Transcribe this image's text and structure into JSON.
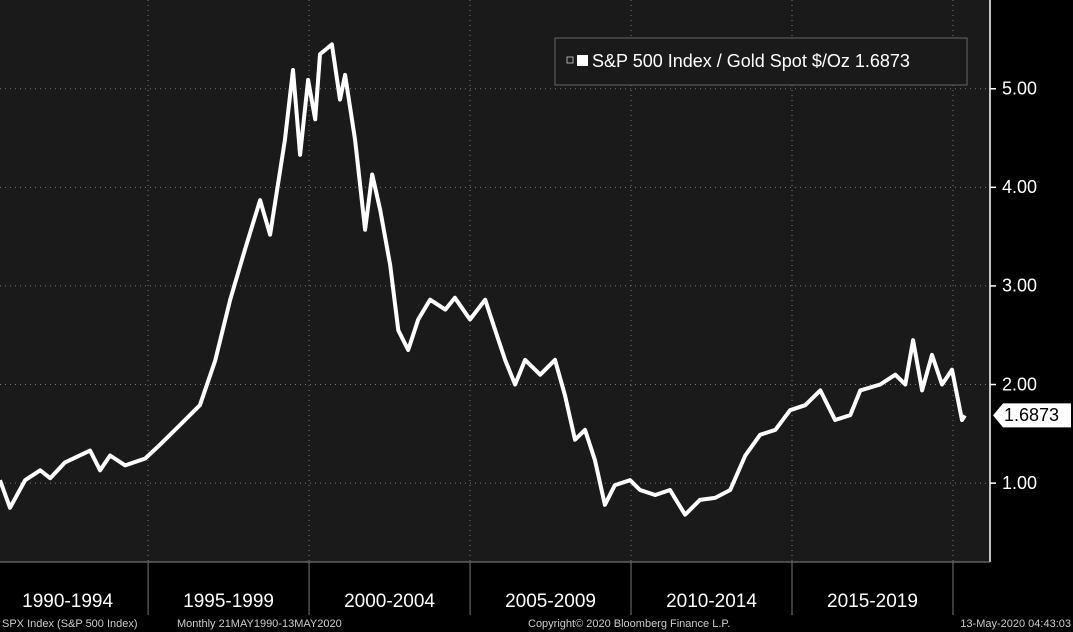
{
  "chart_data": {
    "type": "line",
    "series": [
      {
        "name": "S&P 500 Index / Gold Spot $/Oz 1.6873",
        "color": "#ffffff",
        "x": [
          1990.4,
          1990.71,
          1991.18,
          1991.65,
          1991.96,
          1992.42,
          1993.2,
          1993.51,
          1993.82,
          1994.29,
          1994.91,
          1995.37,
          1995.99,
          1996.61,
          1997.08,
          1997.55,
          1998.01,
          1998.48,
          1998.79,
          1999.25,
          1999.5,
          1999.72,
          1999.97,
          2000.19,
          2000.34,
          2000.71,
          2000.96,
          2001.12,
          2001.43,
          2001.74,
          2001.96,
          2002.21,
          2002.52,
          2002.77,
          2003.08,
          2003.39,
          2003.76,
          2004.23,
          2004.53,
          2005.0,
          2005.47,
          2005.78,
          2006.09,
          2006.4,
          2006.71,
          2007.18,
          2007.64,
          2007.95,
          2008.26,
          2008.57,
          2008.88,
          2009.19,
          2009.5,
          2009.97,
          2010.28,
          2010.75,
          2011.21,
          2011.68,
          2012.14,
          2012.61,
          2013.08,
          2013.55,
          2014.01,
          2014.48,
          2014.94,
          2015.41,
          2015.88,
          2016.34,
          2016.81,
          2017.12,
          2017.74,
          2018.21,
          2018.52,
          2018.76,
          2019.04,
          2019.35,
          2019.66,
          2019.97,
          2020.28,
          2020.37
        ],
        "values": [
          1.03,
          0.75,
          1.03,
          1.13,
          1.05,
          1.21,
          1.33,
          1.13,
          1.28,
          1.18,
          1.25,
          1.39,
          1.59,
          1.79,
          2.24,
          2.86,
          3.37,
          3.87,
          3.52,
          4.48,
          5.19,
          4.33,
          5.09,
          4.69,
          5.35,
          5.45,
          4.89,
          5.14,
          4.48,
          3.57,
          4.13,
          3.77,
          3.21,
          2.55,
          2.35,
          2.66,
          2.86,
          2.76,
          2.88,
          2.66,
          2.86,
          2.55,
          2.25,
          2.0,
          2.25,
          2.1,
          2.25,
          1.89,
          1.44,
          1.54,
          1.23,
          0.78,
          0.98,
          1.03,
          0.93,
          0.88,
          0.93,
          0.68,
          0.83,
          0.85,
          0.93,
          1.28,
          1.49,
          1.54,
          1.74,
          1.79,
          1.94,
          1.64,
          1.69,
          1.94,
          2.0,
          2.1,
          2.0,
          2.45,
          1.94,
          2.3,
          2.0,
          2.15,
          1.64,
          1.6873
        ]
      }
    ],
    "xlim": [
      1990.4,
      2021.15
    ],
    "xticks": [
      {
        "value": 1992.5,
        "label": "1990-1994"
      },
      {
        "value": 1997.5,
        "label": "1995-1999"
      },
      {
        "value": 2002.5,
        "label": "2000-2004"
      },
      {
        "value": 2007.5,
        "label": "2005-2009"
      },
      {
        "value": 2012.5,
        "label": "2010-2014"
      },
      {
        "value": 2017.5,
        "label": "2015-2019"
      }
    ],
    "ylim": [
      0.2,
      5.9
    ],
    "yticks": [
      {
        "value": 1,
        "label": "1.00"
      },
      {
        "value": 2,
        "label": "2.00"
      },
      {
        "value": 3,
        "label": "3.00"
      },
      {
        "value": 4,
        "label": "4.00"
      },
      {
        "value": 5,
        "label": "5.00"
      }
    ],
    "grid": true,
    "legend": "upper right",
    "footer": {
      "security": "SPX Index (S&P 500 Index)",
      "range": "Monthly 21MAY1990-13MAY2020",
      "copyright": "Copyright© 2020 Bloomberg Finance L.P.",
      "timestamp": "13-May-2020 04:43:03"
    }
  }
}
